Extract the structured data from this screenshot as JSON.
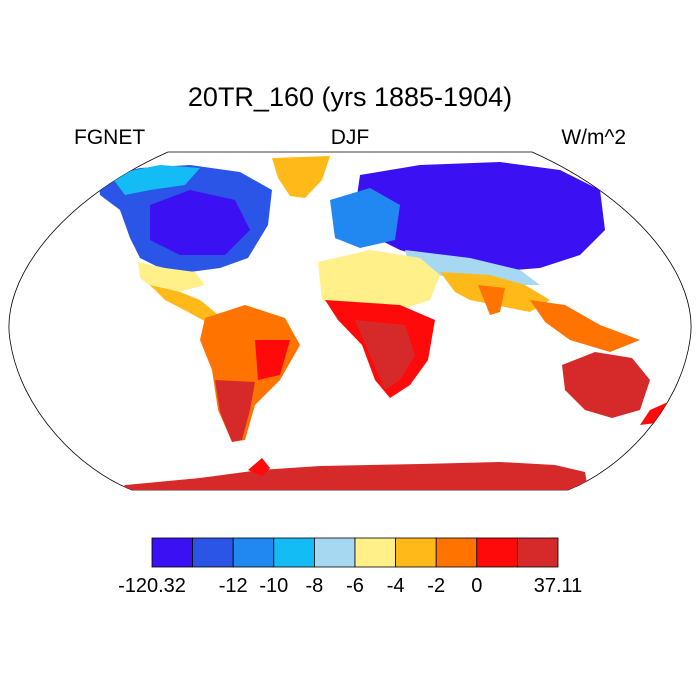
{
  "title": "20TR_160 (yrs 1885-1904)",
  "left_label": "FGNET",
  "center_label": "DJF",
  "units": "W/m^2",
  "projection": "robinson",
  "colorbar": {
    "colors": [
      "#3b10f2",
      "#2b55e6",
      "#2088f0",
      "#14bcf5",
      "#a6d8f2",
      "#fff08a",
      "#ffba19",
      "#ff7300",
      "#ff0a0a",
      "#d62a2a"
    ],
    "labels": [
      "-120.32",
      "-12",
      "-10",
      "-8",
      "-6",
      "-4",
      "-2",
      "0",
      "37.11"
    ]
  },
  "palette": {
    "cold_deep": "#3b10f2",
    "cold": "#2b55e6",
    "cold_mid": "#2088f0",
    "cool": "#14bcf5",
    "cool_light": "#a6d8f2",
    "neutral_yellow": "#fff08a",
    "warm_orange": "#ffba19",
    "warm": "#ff7300",
    "hot": "#ff0a0a",
    "hottest": "#d62a2a"
  }
}
